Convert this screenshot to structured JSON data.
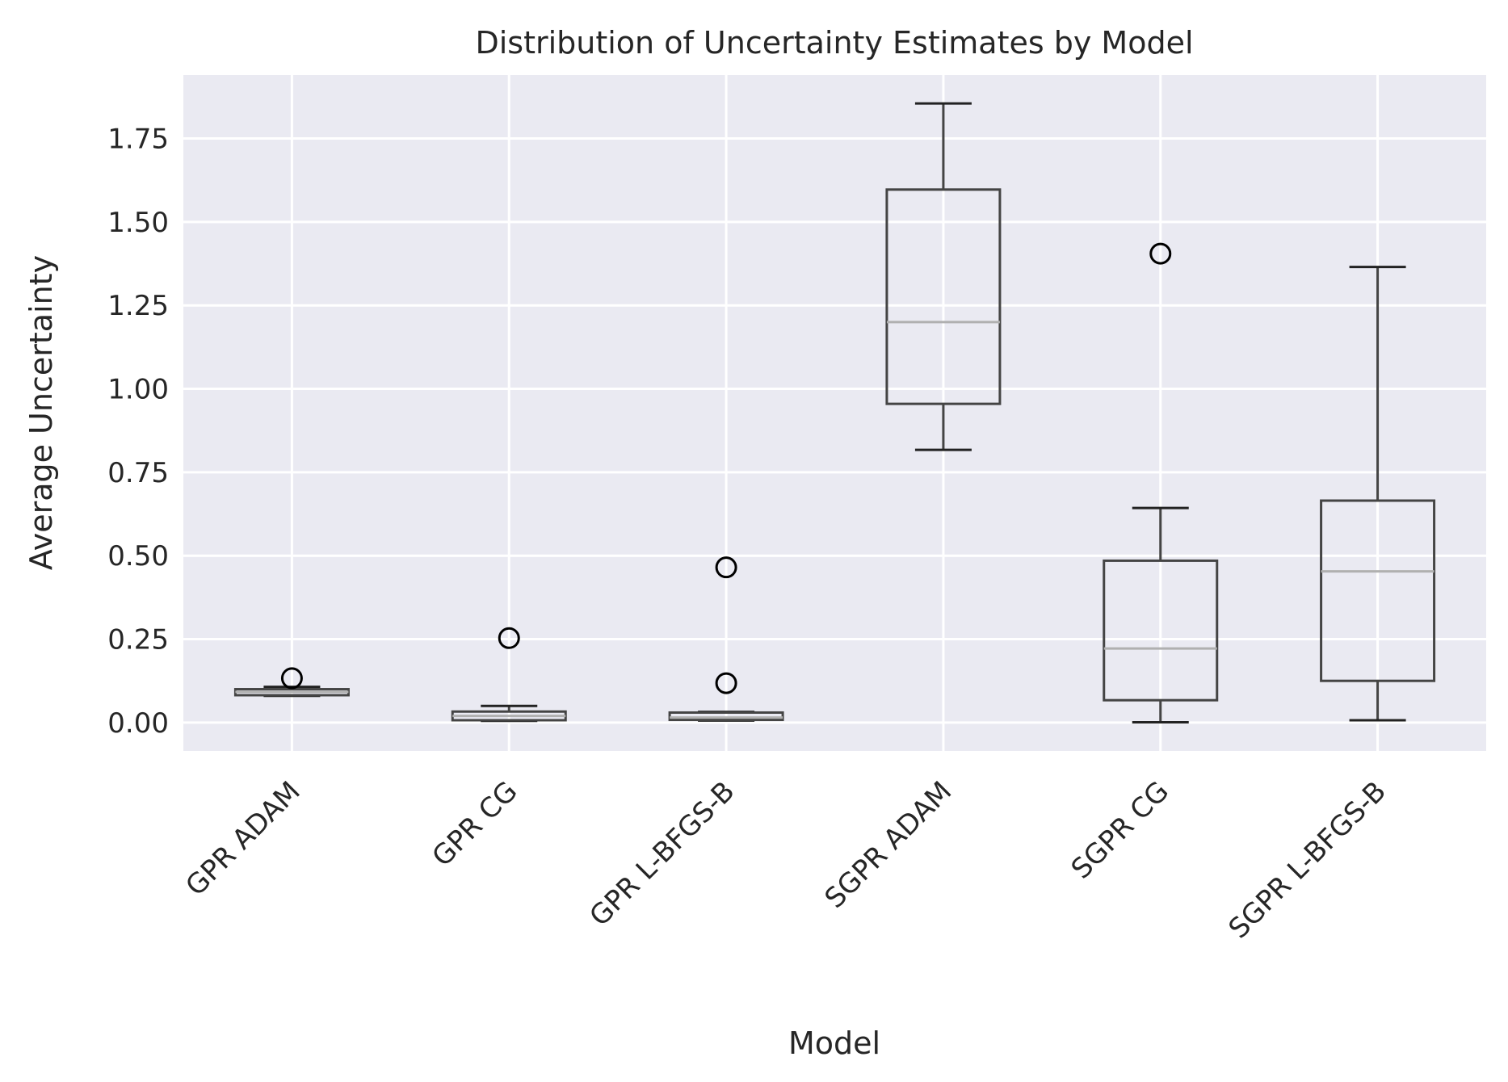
{
  "chart_data": {
    "type": "box",
    "title": "Distribution of Uncertainty Estimates by Model",
    "xlabel": "Model",
    "ylabel": "Average Uncertainty",
    "ylim": [
      -0.085,
      1.94
    ],
    "yticks": [
      "0.00",
      "0.25",
      "0.50",
      "0.75",
      "1.00",
      "1.25",
      "1.50",
      "1.75"
    ],
    "grid": true,
    "colors": {
      "background": "#eaeaf2",
      "grid": "#ffffff",
      "box": "#444444",
      "median": "#b0b0b0",
      "flier": "#000000",
      "text": "#262626"
    },
    "categories": [
      "GPR ADAM",
      "GPR CG",
      "GPR L-BFGS-B",
      "SGPR ADAM",
      "SGPR CG",
      "SGPR L-BFGS-B"
    ],
    "boxes": [
      {
        "whislo": 0.08,
        "q1": 0.082,
        "med": 0.092,
        "q3": 0.1,
        "whishi": 0.107,
        "fliers": [
          0.133
        ]
      },
      {
        "whislo": 0.005,
        "q1": 0.007,
        "med": 0.02,
        "q3": 0.033,
        "whishi": 0.05,
        "fliers": [
          0.253
        ]
      },
      {
        "whislo": 0.006,
        "q1": 0.008,
        "med": 0.015,
        "q3": 0.03,
        "whishi": 0.032,
        "fliers": [
          0.118,
          0.465
        ]
      },
      {
        "whislo": 0.817,
        "q1": 0.955,
        "med": 1.2,
        "q3": 1.597,
        "whishi": 1.855,
        "fliers": []
      },
      {
        "whislo": 0.001,
        "q1": 0.067,
        "med": 0.222,
        "q3": 0.485,
        "whishi": 0.643,
        "fliers": [
          1.405
        ]
      },
      {
        "whislo": 0.007,
        "q1": 0.125,
        "med": 0.453,
        "q3": 0.665,
        "whishi": 1.365,
        "fliers": []
      }
    ]
  }
}
